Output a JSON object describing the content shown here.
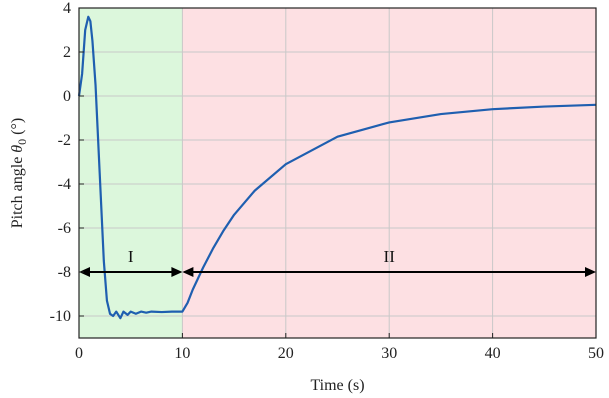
{
  "chart_data": {
    "type": "line",
    "xlabel": "Time (s)",
    "ylabel": {
      "prefix": "Pitch angle ",
      "symbol": "θ",
      "subscript": "0",
      "suffix": " (°)"
    },
    "xlim": [
      0,
      50
    ],
    "ylim": [
      -11,
      4
    ],
    "xticks": [
      0,
      10,
      20,
      30,
      40,
      50
    ],
    "yticks": [
      -10,
      -8,
      -6,
      -4,
      -2,
      0,
      2,
      4
    ],
    "grid": true,
    "regions": [
      {
        "label": "I",
        "x_start": 0,
        "x_end": 10,
        "color": "#dcf7dc"
      },
      {
        "label": "II",
        "x_start": 10,
        "x_end": 50,
        "color": "#fde0e3"
      }
    ],
    "arrows": [
      {
        "label": "I",
        "x_start": 0,
        "x_end": 10,
        "y": -8
      },
      {
        "label": "II",
        "x_start": 10,
        "x_end": 50,
        "y": -8
      }
    ],
    "series": [
      {
        "color": "#1f5fb0",
        "x": [
          0,
          0.3,
          0.6,
          0.9,
          1.1,
          1.3,
          1.6,
          2.0,
          2.4,
          2.7,
          3.0,
          3.3,
          3.6,
          4.0,
          4.3,
          4.7,
          5.0,
          5.5,
          6.0,
          6.5,
          7.0,
          8.0,
          9.0,
          10.0,
          10.5,
          11.0,
          12.0,
          13.0,
          14.0,
          15.0,
          17.0,
          20.0,
          25.0,
          30.0,
          35.0,
          40.0,
          45.0,
          50.0
        ],
        "y": [
          0,
          1.0,
          3.0,
          3.6,
          3.4,
          2.5,
          0.5,
          -3.5,
          -7.5,
          -9.3,
          -9.9,
          -10.0,
          -9.8,
          -10.1,
          -9.8,
          -9.95,
          -9.8,
          -9.9,
          -9.8,
          -9.85,
          -9.8,
          -9.82,
          -9.8,
          -9.8,
          -9.4,
          -8.8,
          -7.8,
          -6.9,
          -6.1,
          -5.4,
          -4.3,
          -3.1,
          -1.85,
          -1.2,
          -0.82,
          -0.6,
          -0.48,
          -0.4
        ]
      }
    ],
    "colors": {
      "axis": "#222222",
      "grid": "#c8c8c8",
      "arrow": "#000000"
    }
  }
}
